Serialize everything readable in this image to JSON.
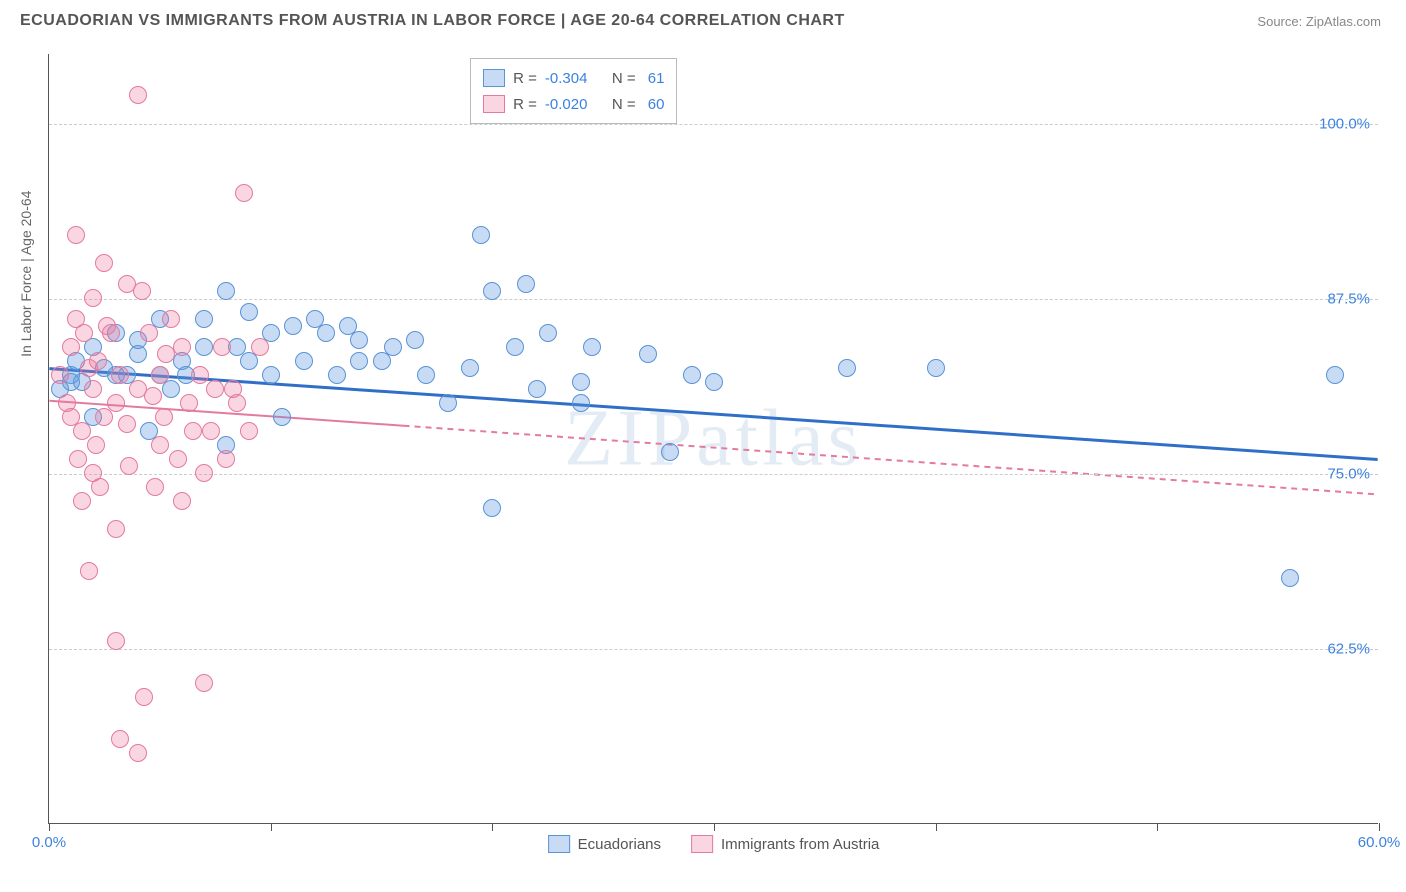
{
  "title": "ECUADORIAN VS IMMIGRANTS FROM AUSTRIA IN LABOR FORCE | AGE 20-64 CORRELATION CHART",
  "source_label": "Source:",
  "source_name": "ZipAtlas.com",
  "ylabel": "In Labor Force | Age 20-64",
  "watermark": "ZIPatlas",
  "chart": {
    "type": "scatter",
    "xlim": [
      0,
      60
    ],
    "ylim": [
      50,
      105
    ],
    "x_range_pct": 60,
    "y_range_min": 50,
    "y_range_max": 105,
    "yticks": [
      62.5,
      75.0,
      87.5,
      100.0
    ],
    "ytick_labels": [
      "62.5%",
      "75.0%",
      "87.5%",
      "100.0%"
    ],
    "xtick_positions": [
      0,
      10,
      20,
      30,
      40,
      50,
      60
    ],
    "x_start_label": "0.0%",
    "x_end_label": "60.0%",
    "background_color": "#ffffff",
    "grid_color": "#cccccc",
    "tick_label_color": "#3b82e0",
    "marker_radius": 9,
    "marker_stroke_width": 1.5,
    "series": [
      {
        "name": "Ecuadorians",
        "fill": "rgba(96,153,224,0.35)",
        "stroke": "#5a93d6",
        "R": "-0.304",
        "N": "61",
        "regression": {
          "x1": 0,
          "y1": 82.5,
          "x2": 60,
          "y2": 76.0,
          "color": "#2f6fc7",
          "width": 3,
          "dash": "none"
        },
        "points": [
          [
            0.5,
            81
          ],
          [
            1,
            82
          ],
          [
            1.2,
            83
          ],
          [
            1.5,
            81.5
          ],
          [
            2,
            84
          ],
          [
            2,
            79
          ],
          [
            2.5,
            82.5
          ],
          [
            3,
            82
          ],
          [
            3,
            85
          ],
          [
            3.5,
            82
          ],
          [
            4,
            83.5
          ],
          [
            4,
            84.5
          ],
          [
            4.5,
            78
          ],
          [
            5,
            82
          ],
          [
            5,
            86
          ],
          [
            5.5,
            81
          ],
          [
            6,
            83
          ],
          [
            6.2,
            82
          ],
          [
            7,
            84
          ],
          [
            7,
            86
          ],
          [
            8,
            88
          ],
          [
            8,
            77
          ],
          [
            8.5,
            84
          ],
          [
            9,
            83
          ],
          [
            9,
            86.5
          ],
          [
            10,
            85
          ],
          [
            10,
            82
          ],
          [
            10.5,
            79
          ],
          [
            11,
            85.5
          ],
          [
            11.5,
            83
          ],
          [
            12,
            86
          ],
          [
            12.5,
            85
          ],
          [
            13,
            82
          ],
          [
            13.5,
            85.5
          ],
          [
            14,
            83
          ],
          [
            14,
            84.5
          ],
          [
            15,
            83
          ],
          [
            15.5,
            84
          ],
          [
            16.5,
            84.5
          ],
          [
            17,
            82
          ],
          [
            18,
            80
          ],
          [
            19,
            82.5
          ],
          [
            19.5,
            92
          ],
          [
            20,
            88
          ],
          [
            20,
            72.5
          ],
          [
            21,
            84
          ],
          [
            21.5,
            88.5
          ],
          [
            22,
            81
          ],
          [
            22.5,
            85
          ],
          [
            24,
            80
          ],
          [
            24,
            81.5
          ],
          [
            24.5,
            84
          ],
          [
            27,
            83.5
          ],
          [
            28,
            76.5
          ],
          [
            29,
            82
          ],
          [
            30,
            81.5
          ],
          [
            36,
            82.5
          ],
          [
            40,
            82.5
          ],
          [
            56,
            67.5
          ],
          [
            58,
            82
          ],
          [
            1,
            81.5
          ]
        ]
      },
      {
        "name": "Immigrants from Austria",
        "fill": "rgba(236,120,160,0.30)",
        "stroke": "#e47aa0",
        "R": "-0.020",
        "N": "60",
        "regression": {
          "x1": 0,
          "y1": 80.2,
          "x2": 60,
          "y2": 73.5,
          "color": "#e47aa0",
          "width": 2,
          "solid_until_x": 16,
          "dash_after": "6,5"
        },
        "points": [
          [
            0.5,
            82
          ],
          [
            0.8,
            80
          ],
          [
            1,
            79
          ],
          [
            1,
            84
          ],
          [
            1.2,
            86
          ],
          [
            1.3,
            76
          ],
          [
            1.5,
            78
          ],
          [
            1.5,
            73
          ],
          [
            1.6,
            85
          ],
          [
            1.8,
            68
          ],
          [
            2,
            75
          ],
          [
            2,
            81
          ],
          [
            2,
            87.5
          ],
          [
            2.2,
            83
          ],
          [
            2.3,
            74
          ],
          [
            2.5,
            79
          ],
          [
            2.5,
            90
          ],
          [
            2.8,
            85
          ],
          [
            3,
            71
          ],
          [
            3,
            80
          ],
          [
            3,
            63
          ],
          [
            3.2,
            56
          ],
          [
            3.5,
            78.5
          ],
          [
            3.5,
            88.5
          ],
          [
            4,
            81
          ],
          [
            4,
            55
          ],
          [
            4,
            102
          ],
          [
            4.3,
            59
          ],
          [
            4.5,
            85
          ],
          [
            4.8,
            74
          ],
          [
            5,
            82
          ],
          [
            5,
            77
          ],
          [
            5.2,
            79
          ],
          [
            5.5,
            86
          ],
          [
            6,
            73
          ],
          [
            6,
            84
          ],
          [
            6.5,
            78
          ],
          [
            7,
            60
          ],
          [
            7,
            75
          ],
          [
            7.5,
            81
          ],
          [
            8,
            76
          ],
          [
            8.5,
            80
          ],
          [
            8.8,
            95
          ],
          [
            9,
            78
          ],
          [
            9.5,
            84
          ],
          [
            1.2,
            92
          ],
          [
            1.8,
            82.5
          ],
          [
            2.1,
            77
          ],
          [
            2.6,
            85.5
          ],
          [
            3.2,
            82
          ],
          [
            3.6,
            75.5
          ],
          [
            4.2,
            88
          ],
          [
            4.7,
            80.5
          ],
          [
            5.3,
            83.5
          ],
          [
            5.8,
            76
          ],
          [
            6.3,
            80
          ],
          [
            6.8,
            82
          ],
          [
            7.3,
            78
          ],
          [
            7.8,
            84
          ],
          [
            8.3,
            81
          ]
        ]
      }
    ]
  },
  "legend_top": {
    "R_label": "R =",
    "N_label": "N ="
  },
  "legend_bottom": [
    {
      "label": "Ecuadorians",
      "fill": "rgba(96,153,224,0.35)",
      "stroke": "#5a93d6"
    },
    {
      "label": "Immigrants from Austria",
      "fill": "rgba(236,120,160,0.30)",
      "stroke": "#e47aa0"
    }
  ]
}
